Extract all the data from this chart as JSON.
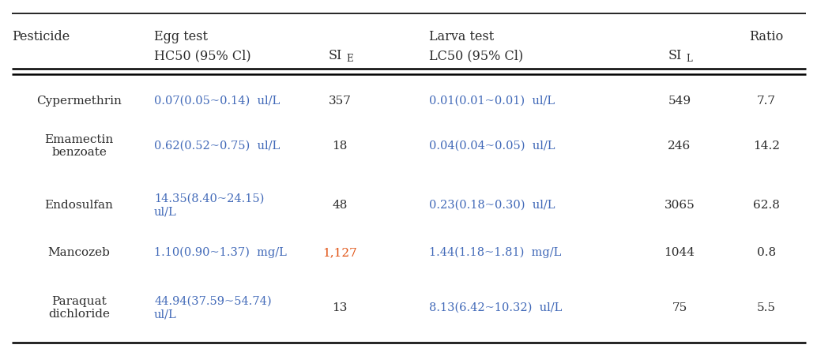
{
  "background_color": "#ffffff",
  "text_color_black": "#2b2b2b",
  "text_color_blue": "#4169b8",
  "text_color_orange": "#e05010",
  "rows": [
    {
      "pesticide": "Cypermethrin",
      "hc50": "0.07(0.05~0.14)  ul/L",
      "si_e": "357",
      "si_e_color": "black",
      "lc50": "0.01(0.01~0.01)  ul/L",
      "si_l": "549",
      "ratio": "7.7"
    },
    {
      "pesticide": "Emamectin\nbenzoate",
      "hc50": "0.62(0.52~0.75)  ul/L",
      "si_e": "18",
      "si_e_color": "black",
      "lc50": "0.04(0.04~0.05)  ul/L",
      "si_l": "246",
      "ratio": "14.2"
    },
    {
      "pesticide": "Endosulfan",
      "hc50": "14.35(8.40~24.15)\nul/L",
      "si_e": "48",
      "si_e_color": "black",
      "lc50": "0.23(0.18~0.30)  ul/L",
      "si_l": "3065",
      "ratio": "62.8"
    },
    {
      "pesticide": "Mancozeb",
      "hc50": "1.10(0.90~1.37)  mg/L",
      "si_e": "1,127",
      "si_e_color": "orange",
      "lc50": "1.44(1.18~1.81)  mg/L",
      "si_l": "1044",
      "ratio": "0.8"
    },
    {
      "pesticide": "Paraquat\ndichloride",
      "hc50": "44.94(37.59~54.74)\nul/L",
      "si_e": "13",
      "si_e_color": "black",
      "lc50": "8.13(6.42~10.32)  ul/L",
      "si_l": "75",
      "ratio": "5.5"
    }
  ],
  "fontsize_header": 11.5,
  "fontsize_body": 11.0,
  "fontsize_sub": 8.5
}
